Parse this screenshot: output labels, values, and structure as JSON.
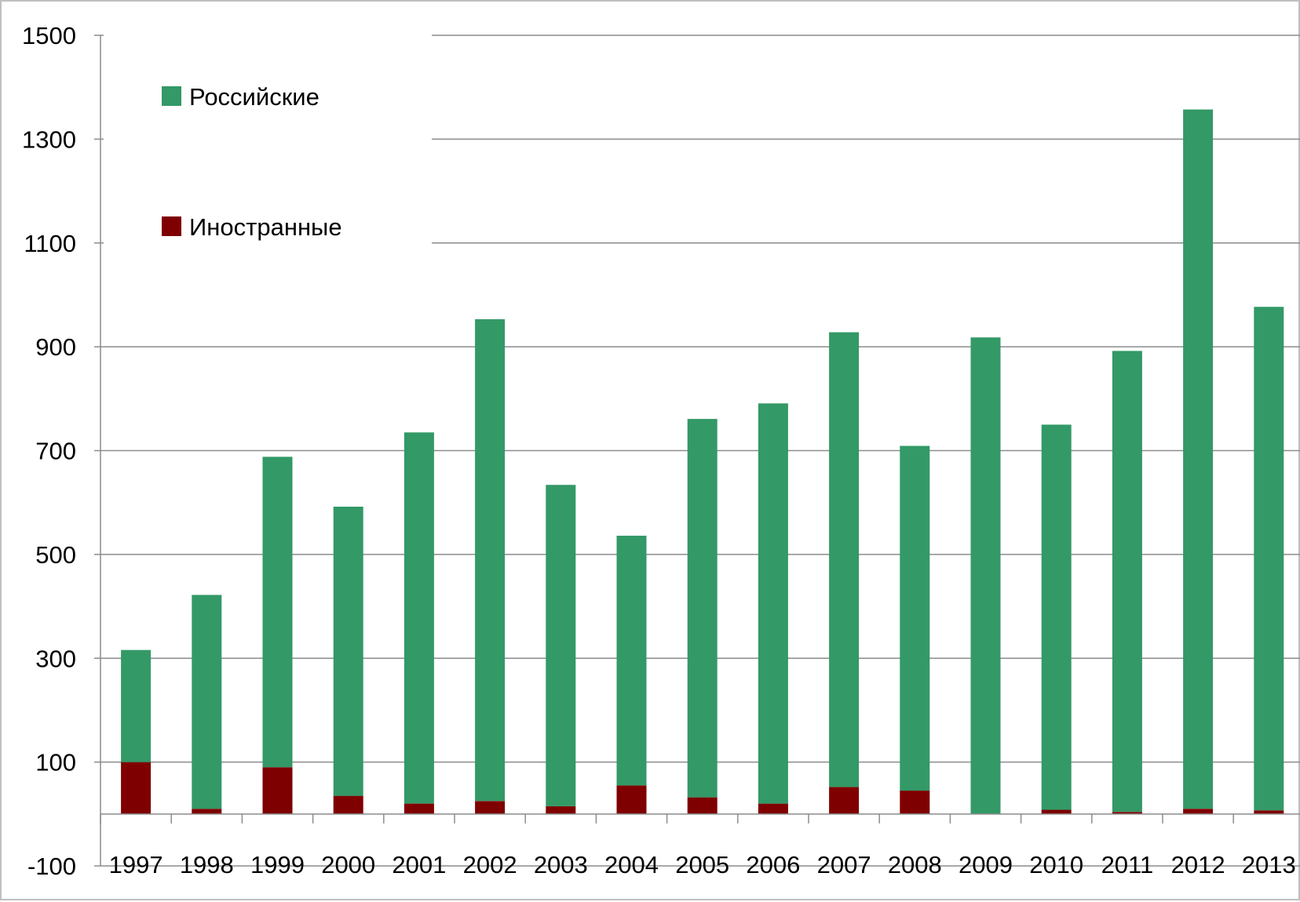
{
  "chart_data": {
    "type": "bar",
    "stacked": true,
    "title": "",
    "xlabel": "",
    "ylabel": "",
    "ylim": [
      -100,
      1500
    ],
    "yticks": [
      -100,
      100,
      300,
      500,
      700,
      900,
      1100,
      1300,
      1500
    ],
    "grid": true,
    "legend_position": "top-left",
    "categories": [
      "1997",
      "1998",
      "1999",
      "2000",
      "2001",
      "2002",
      "2003",
      "2004",
      "2005",
      "2006",
      "2007",
      "2008",
      "2009",
      "2010",
      "2011",
      "2012",
      "2013"
    ],
    "series": [
      {
        "name": "Иностранные",
        "color": "#7f0000",
        "values": [
          100,
          10,
          90,
          35,
          20,
          25,
          15,
          55,
          32,
          20,
          52,
          45,
          0,
          8,
          4,
          10,
          7
        ]
      },
      {
        "name": "Российские",
        "color": "#339966",
        "values": [
          216,
          412,
          598,
          557,
          715,
          928,
          619,
          481,
          729,
          771,
          876,
          664,
          918,
          742,
          888,
          1347,
          970
        ]
      }
    ]
  }
}
